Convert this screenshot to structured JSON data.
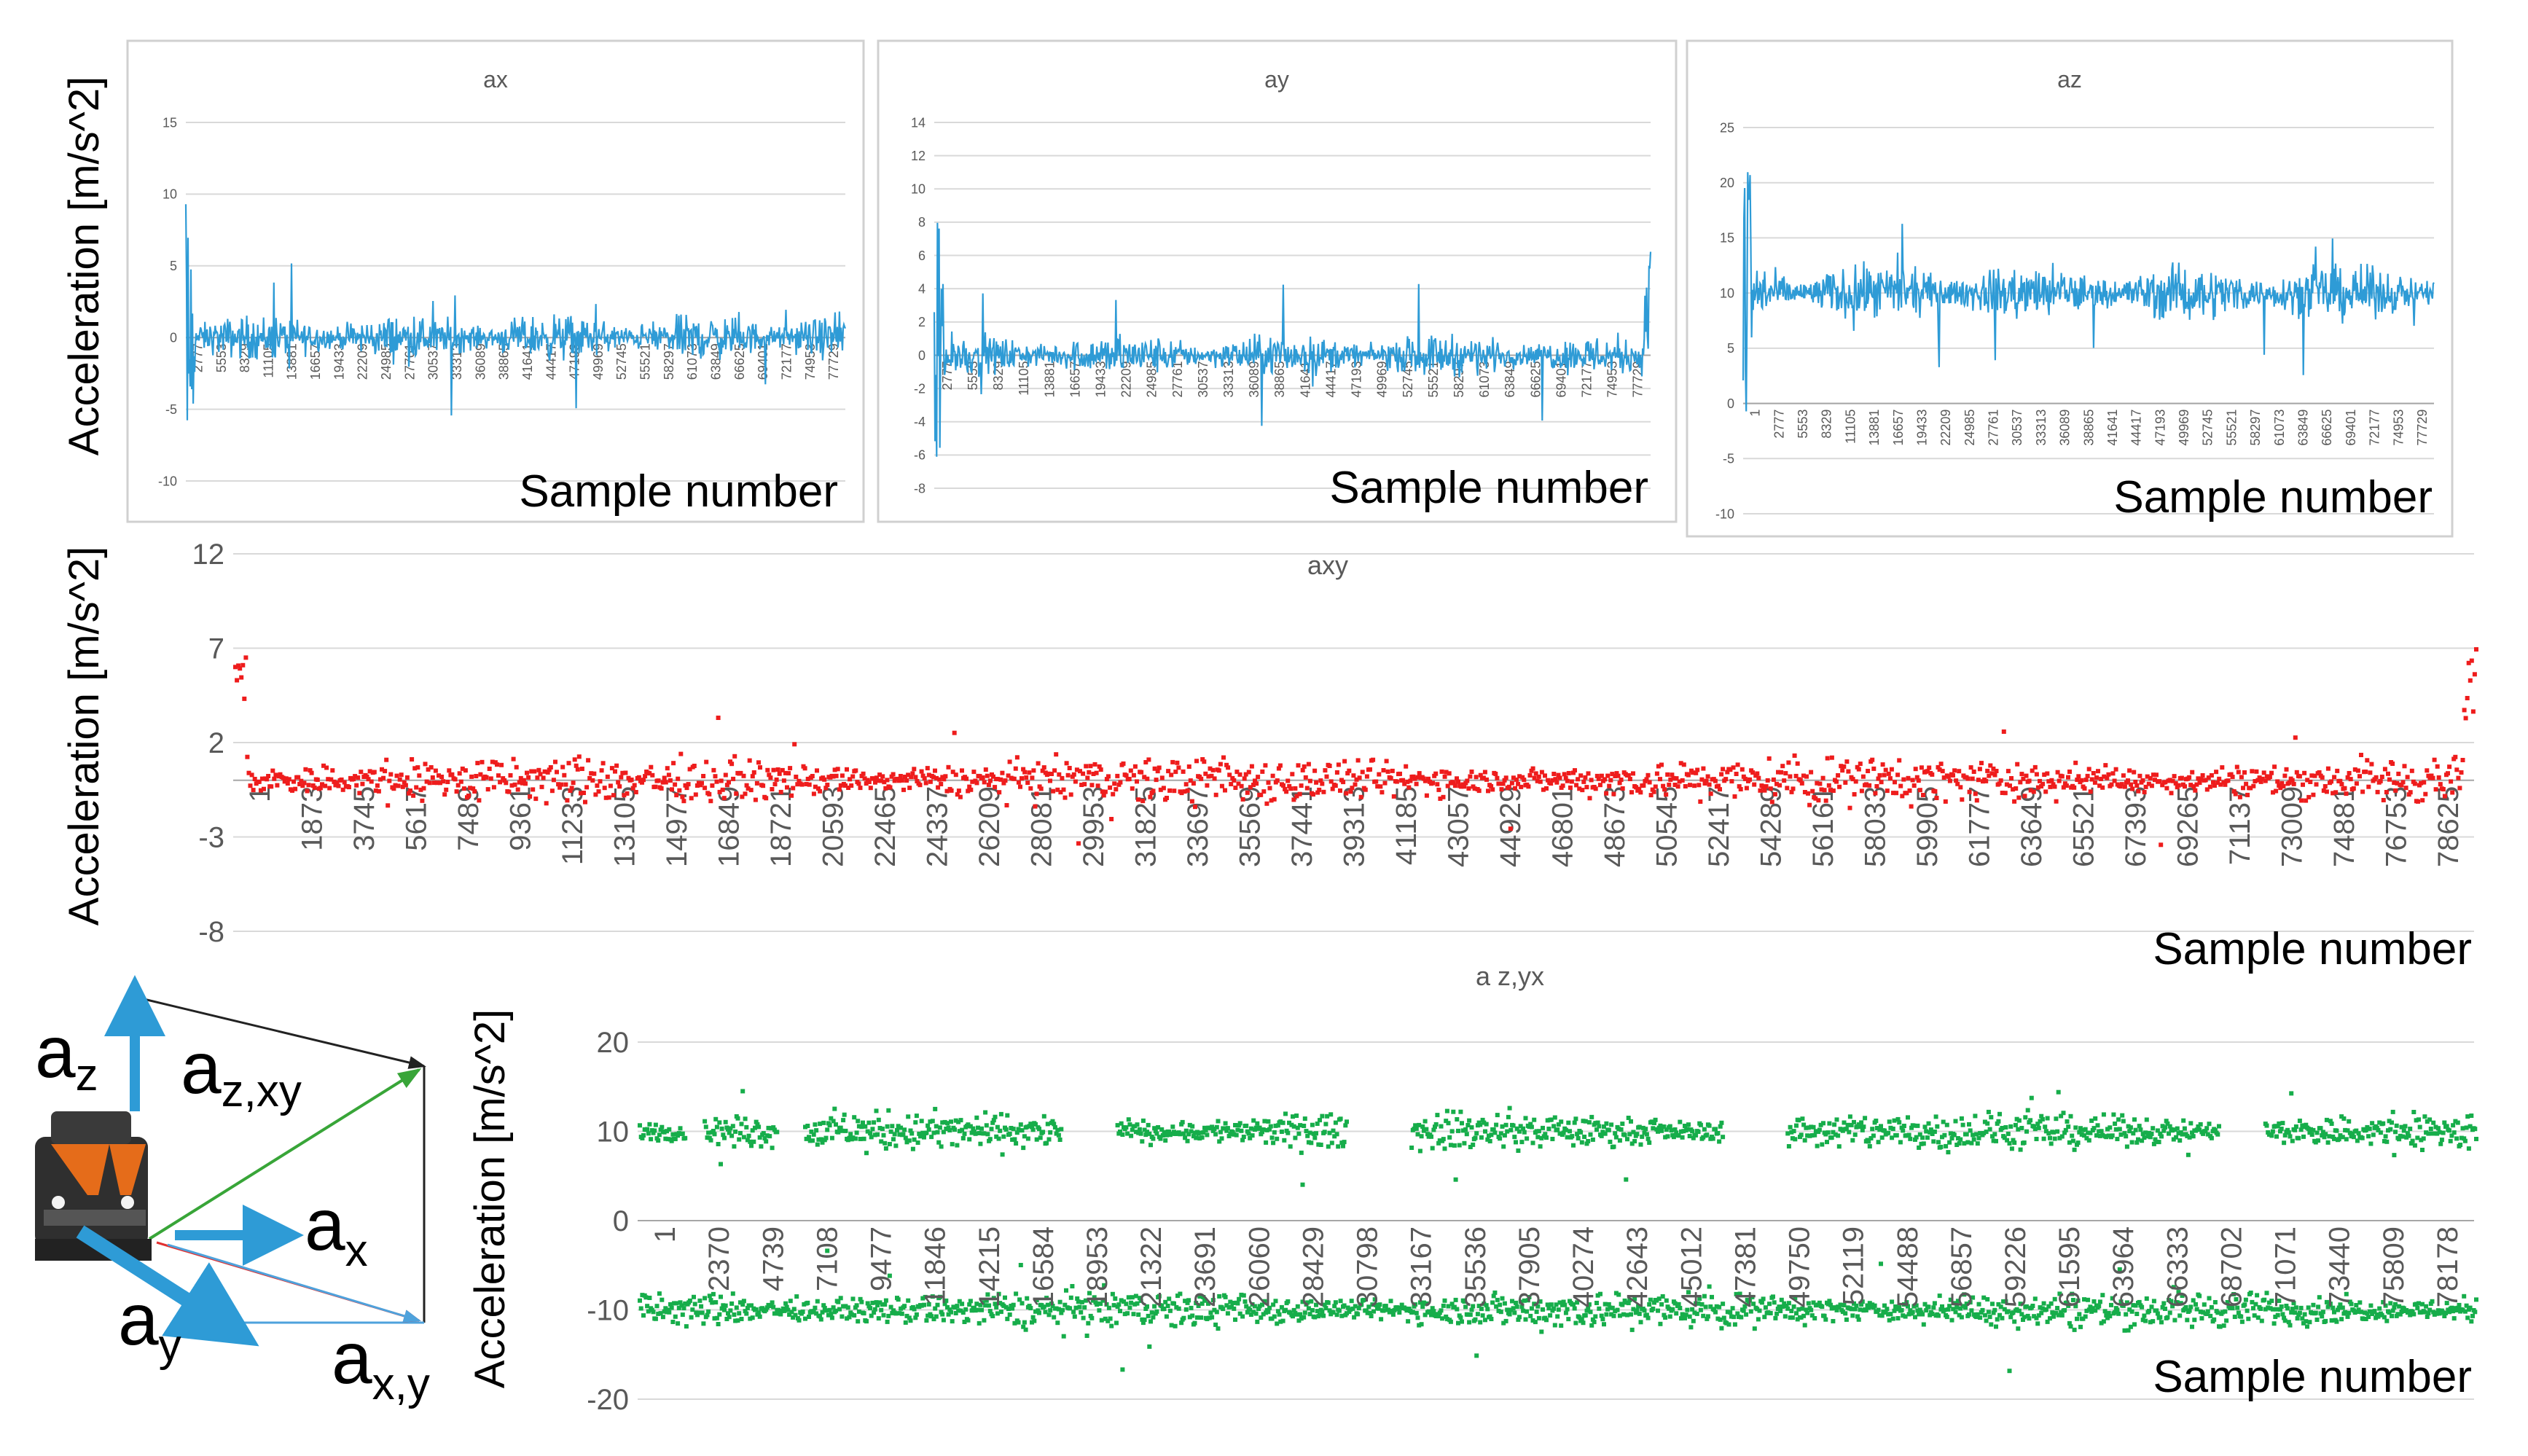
{
  "colors": {
    "blue": "#2E9BD6",
    "red": "#EE1C1C",
    "green": "#16AD4A",
    "grid": "#D9D9D9",
    "frame": "#D0D0D0",
    "text": "#000000",
    "tick": "#595959",
    "diagram_green": "#38A538",
    "diagram_red": "#E23030",
    "diagram_blue_light": "#4EA2DC",
    "loco_orange": "#E56C1A",
    "loco_dark": "#2F2F2F"
  },
  "chart_data": [
    {
      "id": "ax",
      "type": "line",
      "title": "ax",
      "ylabel": "Acceleration [m/s^2]",
      "xlabel_annotation": "Sample number",
      "ylim": [
        -10,
        15
      ],
      "yticks": [
        "15",
        "10",
        "5",
        "0",
        "-5",
        "-10"
      ],
      "xticks": [
        "2777",
        "5553",
        "8329",
        "11105",
        "13881",
        "16657",
        "19433",
        "22209",
        "24985",
        "27761",
        "30537",
        "33313",
        "36089",
        "38865",
        "41641",
        "44417",
        "47193",
        "49969",
        "52745",
        "55521",
        "58297",
        "61073",
        "63849",
        "66625",
        "69401",
        "72177",
        "74953",
        "77729"
      ],
      "series": [
        {
          "name": "ax",
          "base": 0,
          "spread": 1.0,
          "color": "blue"
        }
      ]
    },
    {
      "id": "ay",
      "type": "line",
      "title": "ay",
      "ylabel": "",
      "xlabel_annotation": "Sample number",
      "ylim": [
        -8,
        14
      ],
      "yticks": [
        "14",
        "12",
        "10",
        "8",
        "6",
        "4",
        "2",
        "0",
        "-2",
        "-4",
        "-6",
        "-8"
      ],
      "xticks": [
        "2777",
        "5553",
        "8329",
        "11105",
        "13881",
        "16657",
        "19433",
        "22209",
        "24985",
        "27761",
        "30537",
        "33313",
        "36089",
        "38865",
        "41641",
        "44417",
        "47193",
        "49969",
        "52745",
        "55521",
        "58297",
        "61073",
        "63849",
        "66625",
        "69401",
        "72177",
        "74953",
        "77729"
      ],
      "series": [
        {
          "name": "ay",
          "base": 0,
          "spread": 0.8,
          "color": "blue"
        }
      ]
    },
    {
      "id": "az",
      "type": "line",
      "title": "az",
      "ylabel": "",
      "xlabel_annotation": "Sample number",
      "ylim": [
        -10,
        25
      ],
      "yticks": [
        "25",
        "20",
        "15",
        "10",
        "5",
        "0",
        "-5",
        "-10"
      ],
      "xticks": [
        "1",
        "2777",
        "5553",
        "8329",
        "11105",
        "13881",
        "16657",
        "19433",
        "22209",
        "24985",
        "27761",
        "30537",
        "33313",
        "36089",
        "38865",
        "41641",
        "44417",
        "47193",
        "49969",
        "52745",
        "55521",
        "58297",
        "61073",
        "63849",
        "66625",
        "69401",
        "72177",
        "74953",
        "77729"
      ],
      "series": [
        {
          "name": "az",
          "base": 10,
          "spread": 1.6,
          "color": "blue"
        }
      ]
    },
    {
      "id": "axy",
      "type": "scatter",
      "title": "axy",
      "ylabel": "Acceleration [m/s^2]",
      "xlabel_annotation": "Sample number",
      "ylim": [
        -8,
        12
      ],
      "yticks": [
        "12",
        "7",
        "2",
        "-3",
        "-8"
      ],
      "xticks": [
        "1",
        "1873",
        "3745",
        "5617",
        "7489",
        "9361",
        "11233",
        "13105",
        "14977",
        "16849",
        "18721",
        "20593",
        "22465",
        "24337",
        "26209",
        "28081",
        "29953",
        "31825",
        "33697",
        "35569",
        "37441",
        "39313",
        "41185",
        "43057",
        "44929",
        "46801",
        "48673",
        "50545",
        "52417",
        "54289",
        "56161",
        "58033",
        "59905",
        "61777",
        "63649",
        "65521",
        "67393",
        "69265",
        "71137",
        "73009",
        "74881",
        "76753",
        "78625"
      ],
      "series": [
        {
          "name": "axy",
          "base": 0,
          "spread": 0.8,
          "color": "red"
        }
      ]
    },
    {
      "id": "azyx",
      "type": "scatter",
      "title": "a z,yx",
      "ylabel": "Acceleration [m/s^2]",
      "xlabel_annotation": "Sample number",
      "ylim": [
        -20,
        20
      ],
      "yticks": [
        "20",
        "10",
        "0",
        "-10",
        "-20"
      ],
      "xticks": [
        "1",
        "2370",
        "4739",
        "7108",
        "9477",
        "11846",
        "14215",
        "16584",
        "18953",
        "21322",
        "23691",
        "26060",
        "28429",
        "30798",
        "33167",
        "35536",
        "37905",
        "40274",
        "42643",
        "45012",
        "47381",
        "49750",
        "52119",
        "54488",
        "56857",
        "59226",
        "61595",
        "63964",
        "66333",
        "68702",
        "71071",
        "73440",
        "75809",
        "78178"
      ],
      "series": [
        {
          "name": "a z",
          "base": 10,
          "spread": 1.4,
          "color": "green"
        },
        {
          "name": "a xy",
          "base": -10,
          "spread": 1.4,
          "color": "green"
        }
      ]
    }
  ],
  "diagram": {
    "labels": {
      "az": "a",
      "az_sub": "z",
      "azxy": "a",
      "azxy_sub": "z,xy",
      "ax": "a",
      "ax_sub": "x",
      "ay": "a",
      "ay_sub": "y",
      "axy": "a",
      "axy_sub": "x,y"
    }
  }
}
